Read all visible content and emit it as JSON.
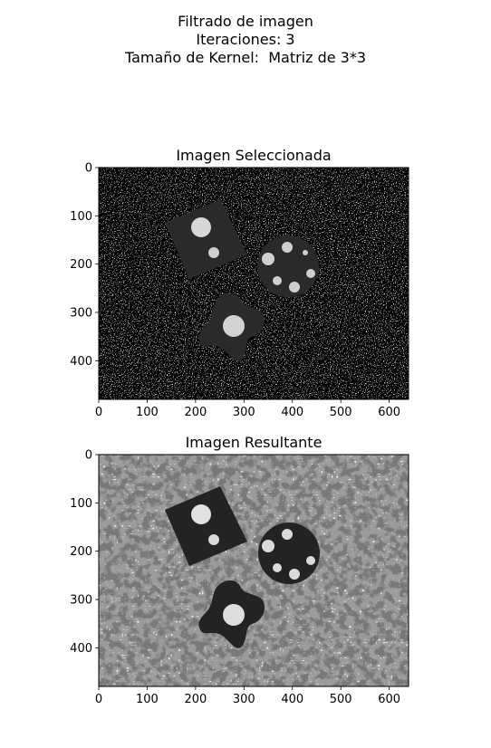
{
  "figure": {
    "suptitle_lines": [
      "Filtrado de imagen",
      "Iteraciones: 3",
      "Tamaño de Kernel:  Matriz de 3*3"
    ]
  },
  "chart_data": [
    {
      "type": "image",
      "title": "Imagen Seleccionada",
      "xlim": [
        0,
        640
      ],
      "ylim": [
        480,
        0
      ],
      "xticks": [
        0,
        100,
        200,
        300,
        400,
        500,
        600
      ],
      "yticks": [
        0,
        100,
        200,
        300,
        400
      ],
      "colormap": "gray",
      "image": {
        "background": "#e9e9e9",
        "speckle": "sparse",
        "shapes": "dark"
      }
    },
    {
      "type": "image",
      "title": "Imagen Resultante",
      "xlim": [
        0,
        640
      ],
      "ylim": [
        480,
        0
      ],
      "xticks": [
        0,
        100,
        200,
        300,
        400,
        500,
        600
      ],
      "yticks": [
        0,
        100,
        200,
        300,
        400
      ],
      "colormap": "gray",
      "image": {
        "background": "#f0f0f0",
        "speckle": "dense",
        "shapes": "dark"
      }
    }
  ]
}
